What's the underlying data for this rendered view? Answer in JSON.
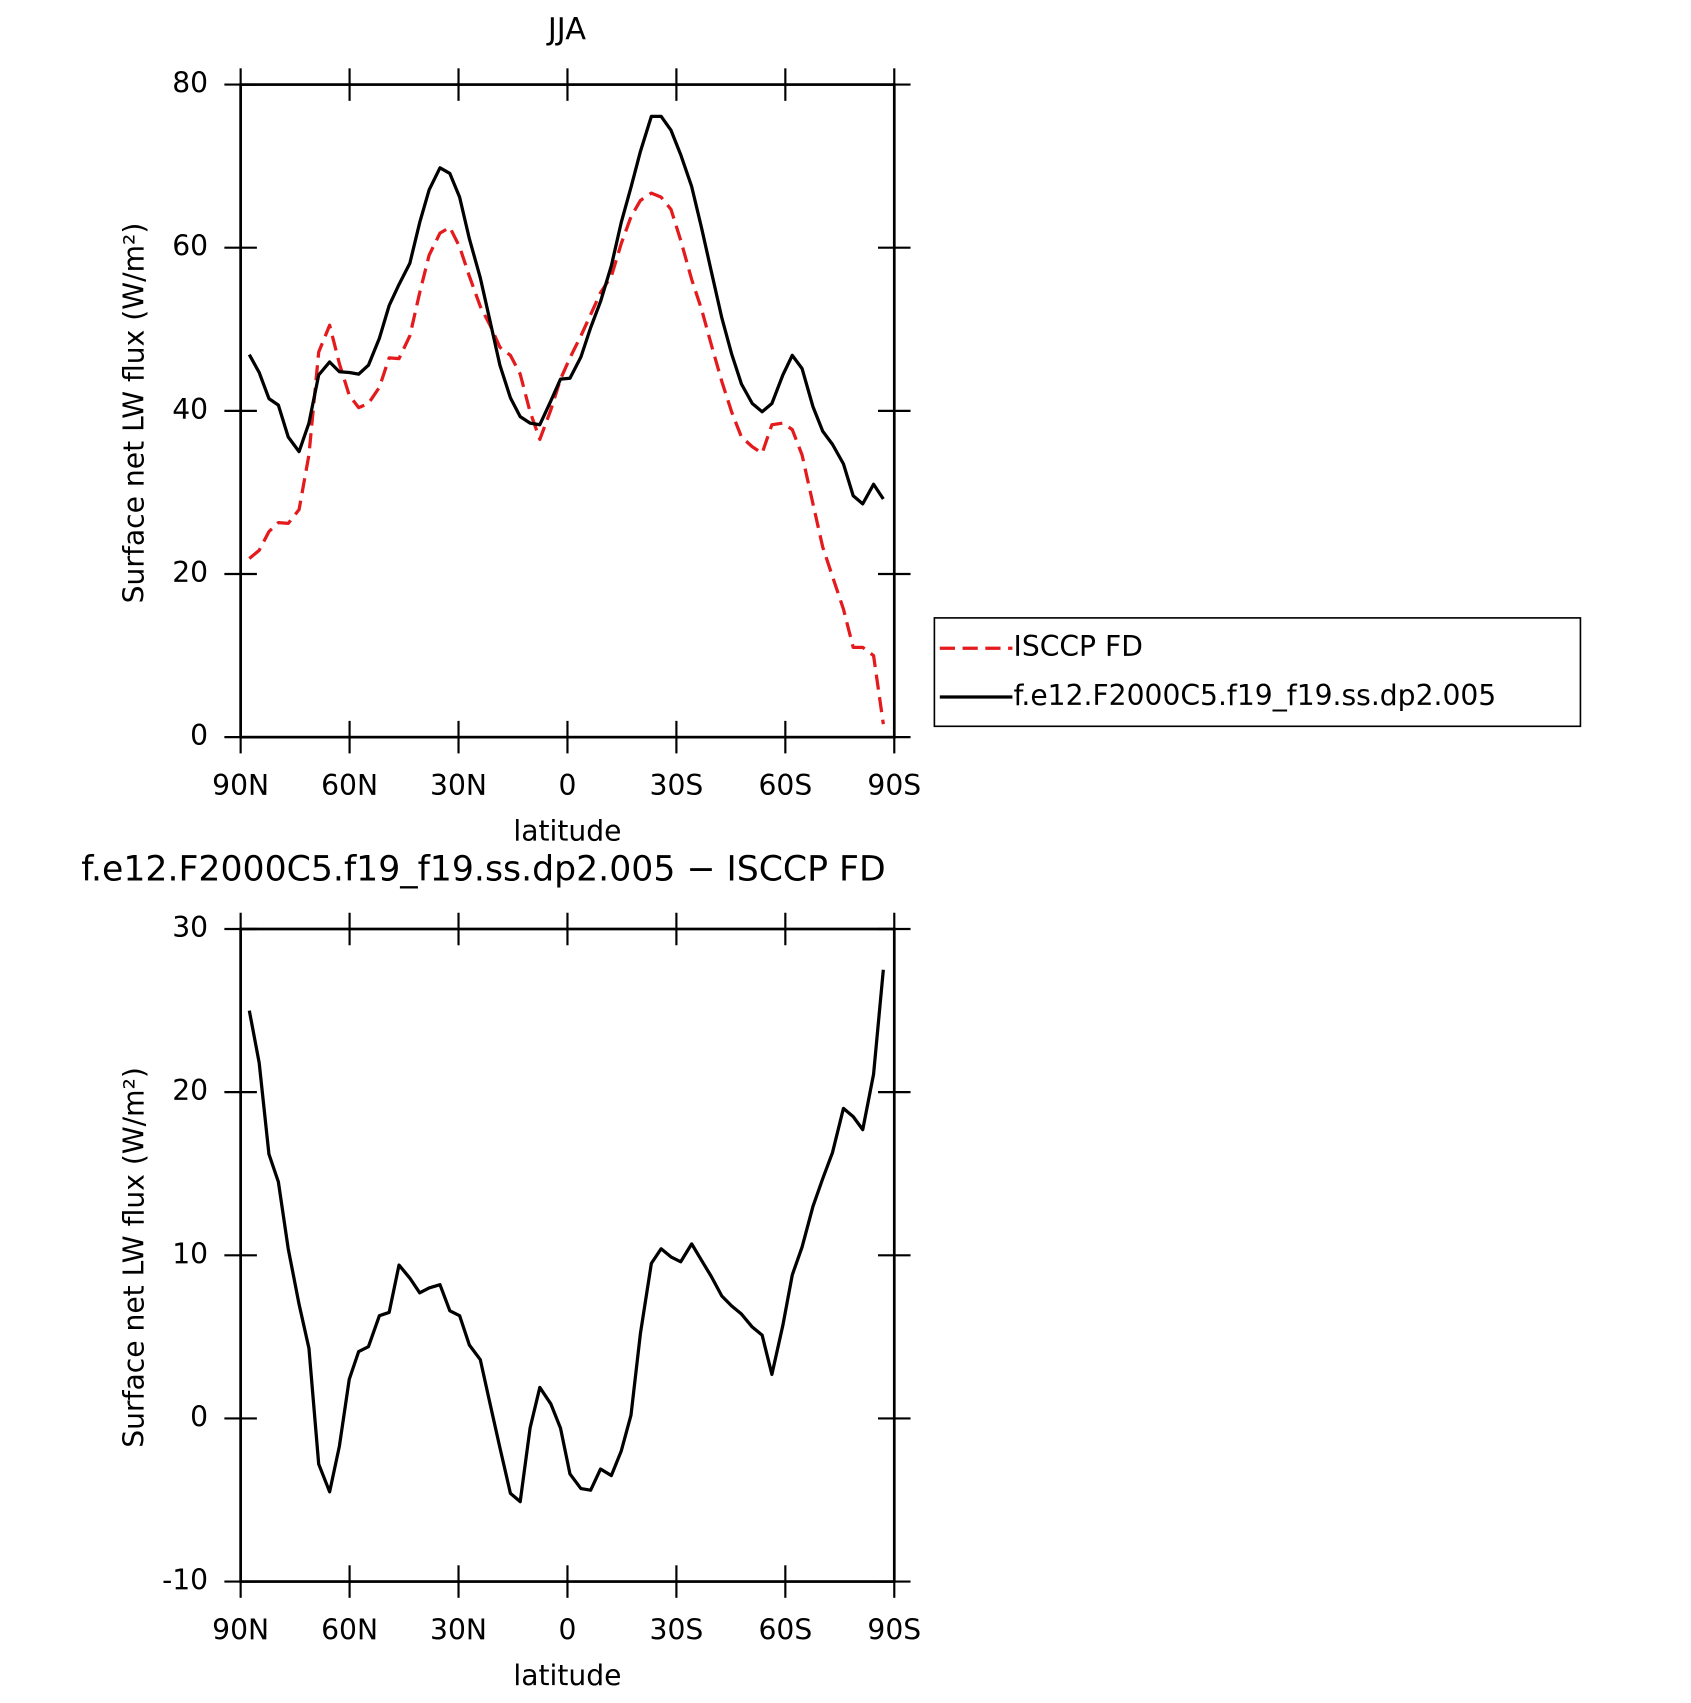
{
  "chart_data": [
    {
      "type": "line",
      "title": "JJA",
      "xlabel": "latitude",
      "ylabel": "Surface net LW flux (W/m²)",
      "x": [
        87.6,
        84.9,
        82.2,
        79.6,
        76.9,
        73.9,
        71.2,
        68.5,
        65.5,
        62.8,
        60.1,
        57.5,
        54.8,
        51.8,
        49.1,
        46.4,
        43.4,
        40.7,
        38.1,
        35.1,
        32.4,
        29.7,
        27.0,
        24.0,
        21.3,
        18.6,
        15.7,
        13.0,
        10.3,
        7.6,
        4.6,
        1.9,
        -0.7,
        -3.7,
        -6.4,
        -9.1,
        -12.1,
        -14.8,
        -17.5,
        -20.1,
        -23.1,
        -25.8,
        -28.5,
        -31.2,
        -34.2,
        -36.9,
        -39.6,
        -42.5,
        -45.2,
        -47.9,
        -50.9,
        -53.6,
        -56.3,
        -59.3,
        -61.9,
        -64.6,
        -67.6,
        -70.3,
        -73.0,
        -76.0,
        -78.7,
        -81.3,
        -84.3,
        -87.0
      ],
      "series": [
        {
          "name": "ISCCP FD",
          "color": "#e41a1c",
          "linestyle": "dashed",
          "values": [
            21.9,
            22.9,
            25.2,
            26.3,
            26.2,
            27.9,
            34.6,
            47.2,
            50.5,
            45.8,
            41.9,
            40.4,
            40.9,
            42.9,
            46.5,
            46.4,
            49.2,
            54.5,
            59.1,
            61.8,
            62.5,
            60.1,
            56.5,
            52.8,
            50.5,
            47.8,
            46.8,
            44.5,
            39.9,
            36.5,
            40.1,
            43.9,
            46.5,
            49.2,
            51.8,
            54.5,
            56.5,
            60.5,
            63.8,
            65.8,
            66.7,
            66.2,
            64.7,
            60.9,
            56.1,
            52.5,
            48.1,
            43.6,
            39.9,
            36.8,
            35.6,
            34.8,
            38.3,
            38.5,
            37.7,
            34.6,
            28.6,
            23.3,
            19.7,
            15.7,
            11.0,
            11.0,
            10.0,
            1.6
          ]
        },
        {
          "name": "f.e12.F2000C5.f19_f19.ss.dp2.005",
          "color": "#000000",
          "linestyle": "solid",
          "values": [
            46.9,
            44.7,
            41.5,
            40.7,
            36.8,
            35.0,
            38.5,
            44.4,
            46.0,
            44.8,
            44.7,
            44.5,
            45.6,
            48.9,
            52.9,
            55.5,
            58.1,
            63.1,
            67.1,
            69.8,
            69.1,
            66.2,
            61.1,
            56.3,
            51.0,
            45.6,
            41.6,
            39.3,
            38.5,
            38.3,
            41.2,
            43.9,
            44.0,
            46.6,
            50.2,
            53.4,
            57.8,
            63.1,
            67.4,
            71.8,
            76.1,
            76.1,
            74.4,
            71.4,
            67.5,
            62.5,
            57.1,
            51.4,
            47.0,
            43.3,
            40.9,
            39.9,
            40.9,
            44.4,
            46.8,
            45.2,
            40.5,
            37.5,
            35.9,
            33.5,
            29.6,
            28.6,
            31.0,
            29.2
          ]
        }
      ],
      "xlim": [
        90,
        -90
      ],
      "xticks": [
        {
          "value": 90,
          "label": "90N"
        },
        {
          "value": 60,
          "label": "60N"
        },
        {
          "value": 30,
          "label": "30N"
        },
        0,
        {
          "value": -30,
          "label": "30S"
        },
        {
          "value": -60,
          "label": "60S"
        },
        {
          "value": -90,
          "label": "90S"
        }
      ],
      "ylim": [
        0,
        80
      ],
      "yticks": [
        0,
        20,
        40,
        60,
        80
      ],
      "legend": "right"
    },
    {
      "type": "line",
      "title": "f.e12.F2000C5.f19_f19.ss.dp2.005 − ISCCP FD",
      "xlabel": "latitude",
      "ylabel": "Surface net LW flux (W/m²)",
      "x": [
        87.6,
        84.9,
        82.2,
        79.6,
        76.9,
        73.9,
        71.2,
        68.5,
        65.5,
        62.8,
        60.1,
        57.5,
        54.8,
        51.8,
        49.1,
        46.4,
        43.4,
        40.7,
        38.1,
        35.1,
        32.4,
        29.7,
        27.0,
        24.0,
        21.3,
        18.6,
        15.7,
        13.0,
        10.3,
        7.6,
        4.6,
        1.9,
        -0.7,
        -3.7,
        -6.4,
        -9.1,
        -12.1,
        -14.8,
        -17.5,
        -20.1,
        -23.1,
        -25.8,
        -28.5,
        -31.2,
        -34.2,
        -36.9,
        -39.6,
        -42.5,
        -45.2,
        -47.9,
        -50.9,
        -53.6,
        -56.3,
        -59.3,
        -61.9,
        -64.6,
        -67.6,
        -70.3,
        -73.0,
        -76.0,
        -78.7,
        -81.3,
        -84.3,
        -87.0
      ],
      "series": [
        {
          "color": "#000000",
          "linestyle": "solid",
          "values": [
            25.0,
            21.8,
            16.2,
            14.5,
            10.4,
            7.0,
            4.3,
            -2.8,
            -4.5,
            -1.7,
            2.4,
            4.1,
            4.4,
            6.3,
            6.5,
            9.4,
            8.6,
            7.7,
            8.0,
            8.2,
            6.6,
            6.3,
            4.5,
            3.6,
            0.9,
            -1.8,
            -4.6,
            -5.1,
            -0.6,
            1.9,
            0.9,
            -0.6,
            -3.4,
            -4.3,
            -4.4,
            -3.1,
            -3.5,
            -2.0,
            0.2,
            5.2,
            9.5,
            10.4,
            9.9,
            9.6,
            10.7,
            9.7,
            8.7,
            7.5,
            6.9,
            6.4,
            5.6,
            5.1,
            2.7,
            5.7,
            8.8,
            10.5,
            13.0,
            14.7,
            16.3,
            19.0,
            18.5,
            17.7,
            21.1,
            27.5
          ]
        }
      ],
      "xlim": [
        90,
        -90
      ],
      "xticks": [
        {
          "value": 90,
          "label": "90N"
        },
        {
          "value": 60,
          "label": "60N"
        },
        {
          "value": 30,
          "label": "30N"
        },
        0,
        {
          "value": -30,
          "label": "30S"
        },
        {
          "value": -60,
          "label": "60S"
        },
        {
          "value": -90,
          "label": "90S"
        }
      ],
      "ylim": [
        -10,
        30
      ],
      "yticks": [
        -10,
        0,
        10,
        20,
        30
      ]
    }
  ]
}
